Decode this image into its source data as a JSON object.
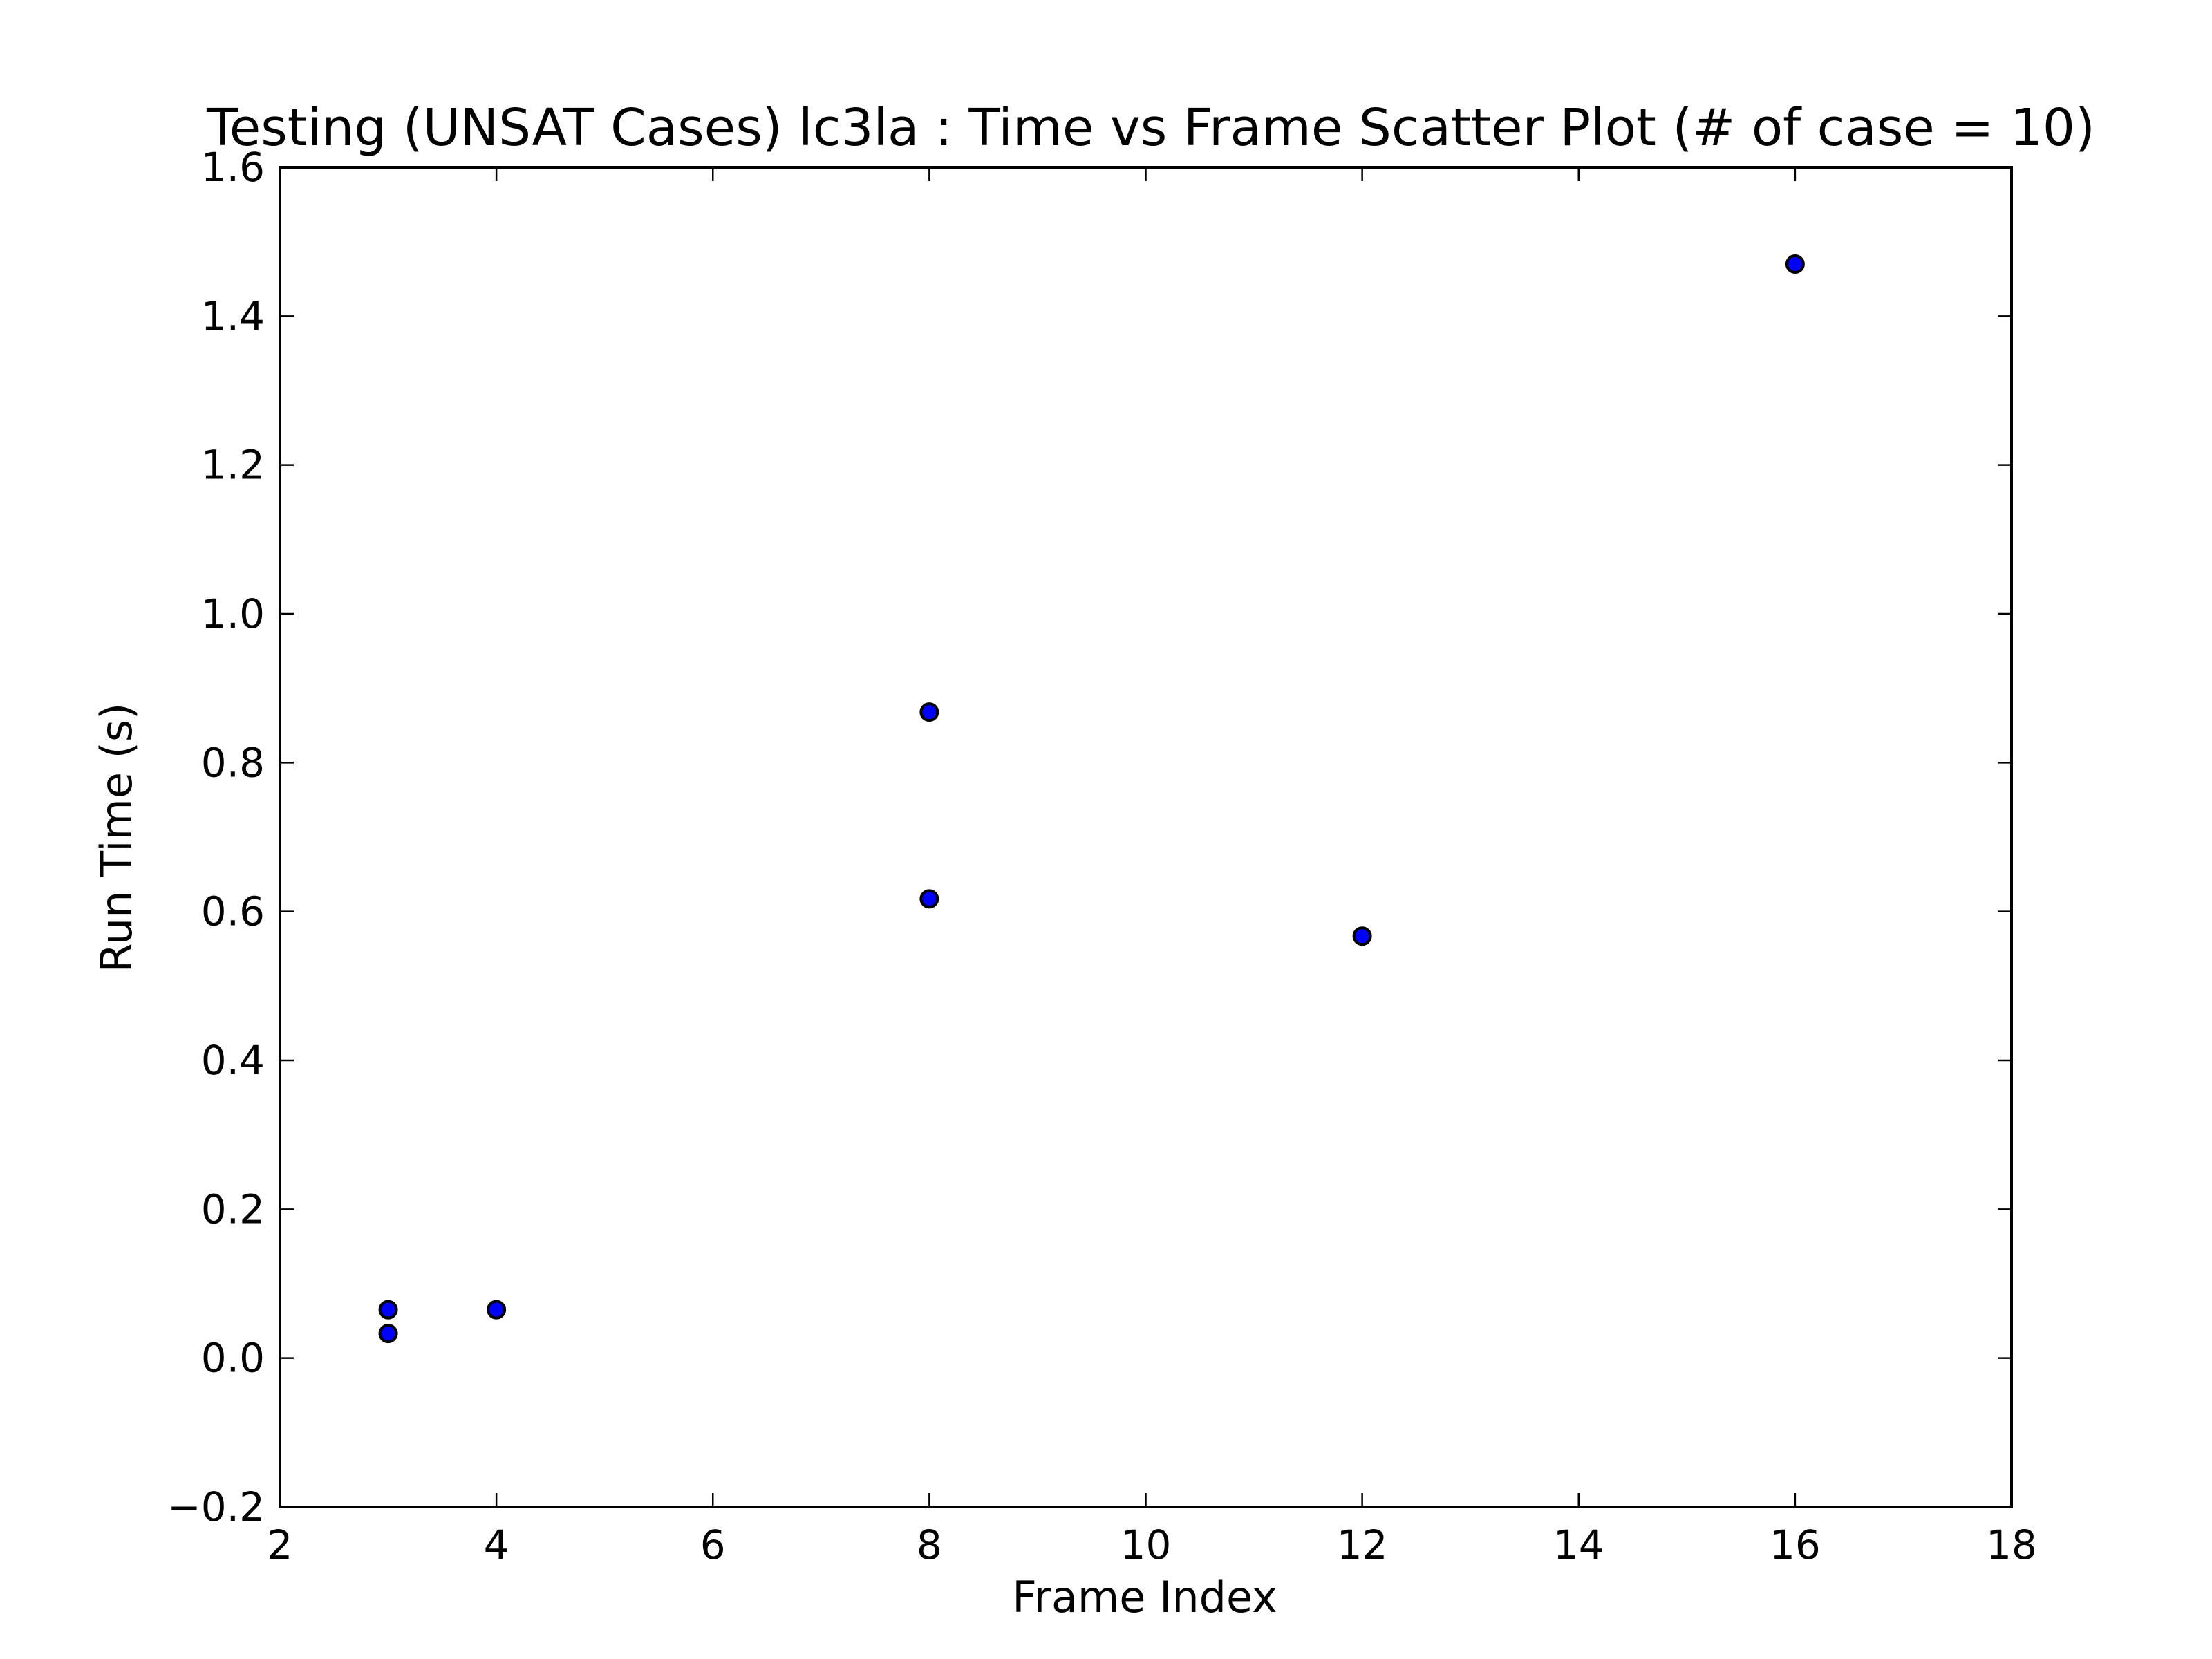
{
  "chart_data": {
    "type": "scatter",
    "title": "Testing (UNSAT Cases) lc3la : Time vs Frame Scatter Plot (# of case = 10)",
    "xlabel": "Frame Index",
    "ylabel": "Run Time (s)",
    "xlim": [
      2,
      18
    ],
    "ylim": [
      -0.2,
      1.6
    ],
    "xticks": [
      2,
      4,
      6,
      8,
      10,
      12,
      14,
      16,
      18
    ],
    "xtick_labels": [
      "2",
      "4",
      "6",
      "8",
      "10",
      "12",
      "14",
      "16",
      "18"
    ],
    "yticks": [
      -0.2,
      0.0,
      0.2,
      0.4,
      0.6,
      0.8,
      1.0,
      1.2,
      1.4,
      1.6
    ],
    "ytick_labels": [
      "−0.2",
      "0.0",
      "0.2",
      "0.4",
      "0.6",
      "0.8",
      "1.0",
      "1.2",
      "1.4",
      "1.6"
    ],
    "grid": false,
    "marker_color": "#0000ff",
    "marker_edge_color": "#000000",
    "points": [
      {
        "x": 3,
        "y": 0.065
      },
      {
        "x": 3,
        "y": 0.033
      },
      {
        "x": 4,
        "y": 0.065
      },
      {
        "x": 8,
        "y": 0.868
      },
      {
        "x": 8,
        "y": 0.617
      },
      {
        "x": 12,
        "y": 0.567
      },
      {
        "x": 16,
        "y": 1.47
      }
    ]
  }
}
